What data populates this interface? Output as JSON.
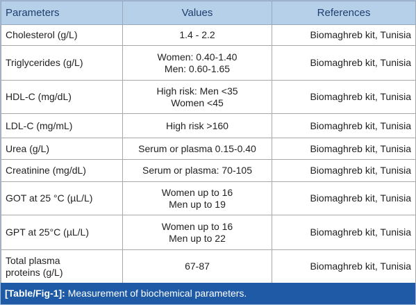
{
  "table": {
    "header": [
      "Parameters",
      "Values",
      "References"
    ],
    "rows": [
      {
        "parameter": [
          "Cholesterol (g/L)"
        ],
        "values": [
          "1.4 - 2.2"
        ],
        "reference": [
          "Biomaghreb kit, Tunisia"
        ]
      },
      {
        "parameter": [
          "Triglycerides (g/L)"
        ],
        "values": [
          "Women: 0.40-1.40",
          "Men: 0.60-1.65"
        ],
        "reference": [
          "Biomaghreb kit, Tunisia"
        ]
      },
      {
        "parameter": [
          "HDL-C (mg/dL)"
        ],
        "values": [
          "High risk: Men <35",
          "Women <45"
        ],
        "reference": [
          "Biomaghreb kit, Tunisia"
        ]
      },
      {
        "parameter": [
          "LDL-C (mg/mL)"
        ],
        "values": [
          "High risk >160"
        ],
        "reference": [
          "Biomaghreb kit, Tunisia"
        ]
      },
      {
        "parameter": [
          "Urea (g/L)"
        ],
        "values": [
          "Serum or plasma 0.15-0.40"
        ],
        "reference": [
          "Biomaghreb kit, Tunisia"
        ]
      },
      {
        "parameter": [
          "Creatinine (mg/dL)"
        ],
        "values": [
          "Serum or plasma: 70-105"
        ],
        "reference": [
          "Biomaghreb kit, Tunisia"
        ]
      },
      {
        "parameter": [
          "GOT at 25 °C (µL/L)"
        ],
        "values": [
          "Women up to  16",
          "Men up to 19"
        ],
        "reference": [
          "Biomaghreb kit, Tunisia"
        ]
      },
      {
        "parameter": [
          "GPT at 25°C (µL/L)"
        ],
        "values": [
          "Women up to 16",
          "Men up to 22"
        ],
        "reference": [
          "Biomaghreb kit, Tunisia"
        ]
      },
      {
        "parameter": [
          "Total plasma",
          "proteins (g/L)"
        ],
        "values": [
          "67-87"
        ],
        "reference": [
          "Biomaghreb kit, Tunisia"
        ]
      }
    ]
  },
  "caption": {
    "label": "[Table/Fig-1]:",
    "text": "Measurement of biochemical parameters."
  }
}
